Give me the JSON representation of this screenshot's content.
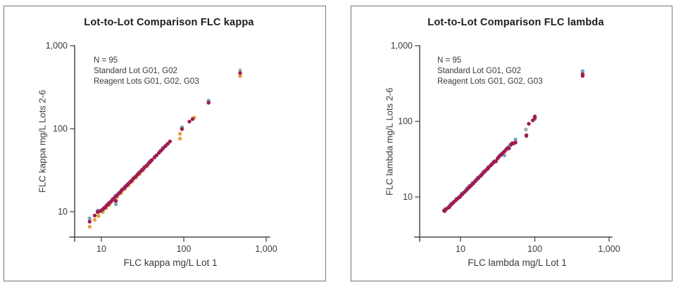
{
  "page": {
    "background": "#ffffff",
    "panel_border_color": "#72797c",
    "axis_color": "#4a4a4a",
    "text_color": "#3a3a3a",
    "title_color": "#1c1c1c"
  },
  "panels": [
    {
      "title": "Lot-to-Lot Comparison FLC kappa",
      "annotation": [
        "N = 95",
        "Standard Lot G01, G02",
        "Reagent Lots G01, G02, G03"
      ],
      "xlabel": "FLC kappa mg/L Lot 1",
      "ylabel": "FLC kappa mg/L Lots 2-6"
    },
    {
      "title": "Lot-to-Lot Comparison FLC lambda",
      "annotation": [
        "N = 95",
        "Standard Lot G01, G02",
        "Reagent Lots G01, G02, G03"
      ],
      "xlabel": "FLC lambda mg/L Lot 1",
      "ylabel": "FLC lambda mg/L Lots 2-6"
    }
  ],
  "chart_data": [
    {
      "type": "scatter",
      "title": "Lot-to-Lot Comparison FLC kappa",
      "xlabel": "FLC kappa mg/L Lot 1",
      "ylabel": "FLC kappa mg/L Lots 2-6",
      "xscale": "log",
      "yscale": "log",
      "xlim": [
        4.7,
        1050
      ],
      "ylim": [
        4.7,
        1050
      ],
      "x_tick_values": [
        10,
        100,
        1000
      ],
      "x_tick_labels": [
        "10",
        "100",
        "1,000"
      ],
      "y_tick_values": [
        10,
        100,
        1000
      ],
      "y_tick_labels": [
        "10",
        "100",
        "1,000"
      ],
      "annotation": [
        "N = 95",
        "Standard Lot G01, G02",
        "Reagent Lots G01, G02, G03"
      ],
      "grid": false,
      "legend": false,
      "series": [
        {
          "name": "gray-markers",
          "color": "#9FABB3",
          "points": [
            [
              11.8,
              12.3
            ],
            [
              16.2,
              16.8
            ],
            [
              22.4,
              23.2
            ],
            [
              31,
              32.2
            ],
            [
              45,
              46.8
            ],
            [
              483,
              505
            ]
          ]
        },
        {
          "name": "purple-markers",
          "color": "#8A3F8F",
          "points": [
            [
              10.8,
              11.1
            ],
            [
              13.8,
              14.2
            ],
            [
              19.8,
              20.3
            ],
            [
              27.8,
              28.5
            ],
            [
              40,
              41.2
            ],
            [
              56,
              58.5
            ],
            [
              200,
              208
            ]
          ]
        },
        {
          "name": "steel-blue-markers",
          "color": "#78A2C0",
          "points": [
            [
              7.2,
              8.3
            ],
            [
              9.0,
              10.3
            ],
            [
              10.4,
              10.0
            ],
            [
              12.4,
              12.1
            ],
            [
              14.8,
              15.6
            ],
            [
              15,
              12.3
            ],
            [
              17.8,
              18.6
            ],
            [
              20.8,
              21.5
            ],
            [
              24.3,
              25.3
            ],
            [
              28.9,
              29.9
            ],
            [
              33.5,
              34.9
            ],
            [
              38,
              39.6
            ],
            [
              44.5,
              46.4
            ],
            [
              52,
              54.2
            ],
            [
              60.5,
              63
            ],
            [
              95,
              104
            ],
            [
              200,
              218
            ]
          ]
        },
        {
          "name": "orange-markers",
          "color": "#E6A33C",
          "points": [
            [
              7.2,
              6.6
            ],
            [
              8.3,
              8.0
            ],
            [
              9.2,
              8.9
            ],
            [
              10.3,
              9.9
            ],
            [
              11.4,
              11.0
            ],
            [
              12.6,
              12.2
            ],
            [
              14,
              13.6
            ],
            [
              15.6,
              15.1
            ],
            [
              17.3,
              16.8
            ],
            [
              19.2,
              18.7
            ],
            [
              21.3,
              20.8
            ],
            [
              23.6,
              23.1
            ],
            [
              26.2,
              25.7
            ],
            [
              29,
              28.5
            ],
            [
              32,
              31.5
            ],
            [
              36,
              35.4
            ],
            [
              90,
              76
            ],
            [
              90,
              87
            ],
            [
              134,
              136
            ],
            [
              483,
              430
            ]
          ]
        },
        {
          "name": "crimson-markers",
          "color": "#A11C52",
          "points": [
            [
              7.2,
              7.6
            ],
            [
              8.3,
              9.0
            ],
            [
              9.0,
              9.9
            ],
            [
              9.4,
              10.1
            ],
            [
              10,
              10.4
            ],
            [
              10.5,
              10.8
            ],
            [
              11,
              11.2
            ],
            [
              11.5,
              11.8
            ],
            [
              12,
              12.2
            ],
            [
              12.5,
              12.8
            ],
            [
              13,
              13.2
            ],
            [
              13.6,
              13.9
            ],
            [
              14.2,
              14.5
            ],
            [
              15,
              13.5
            ],
            [
              15,
              15.3
            ],
            [
              15.8,
              16.1
            ],
            [
              16.6,
              16.9
            ],
            [
              17.4,
              17.8
            ],
            [
              18.3,
              18.7
            ],
            [
              19.2,
              19.6
            ],
            [
              20.2,
              20.6
            ],
            [
              21.2,
              21.6
            ],
            [
              22.3,
              22.7
            ],
            [
              23.4,
              23.8
            ],
            [
              24.6,
              25.1
            ],
            [
              25.8,
              26.3
            ],
            [
              27.1,
              27.6
            ],
            [
              28.5,
              29.1
            ],
            [
              30,
              30.6
            ],
            [
              31.5,
              32.1
            ],
            [
              33,
              33.7
            ],
            [
              35,
              35.7
            ],
            [
              37,
              37.7
            ],
            [
              39,
              39.8
            ],
            [
              41,
              41.9
            ],
            [
              44,
              45
            ],
            [
              47,
              48
            ],
            [
              50,
              51.4
            ],
            [
              53,
              54.4
            ],
            [
              56,
              57.8
            ],
            [
              60,
              61.8
            ],
            [
              64,
              66
            ],
            [
              68,
              70.2
            ],
            [
              95,
              99
            ],
            [
              117,
              122
            ],
            [
              128,
              131
            ],
            [
              200,
              206
            ],
            [
              483,
              468
            ]
          ]
        }
      ]
    },
    {
      "type": "scatter",
      "title": "Lot-to-Lot Comparison FLC lambda",
      "xlabel": "FLC lambda mg/L Lot 1",
      "ylabel": "FLC lambda mg/L Lots 2-6",
      "xscale": "log",
      "yscale": "log",
      "xlim": [
        2.9,
        1050
      ],
      "ylim": [
        2.9,
        1050
      ],
      "x_tick_values": [
        10,
        100,
        1000
      ],
      "x_tick_labels": [
        "10",
        "100",
        "1,000"
      ],
      "y_tick_values": [
        10,
        100,
        1000
      ],
      "y_tick_labels": [
        "10",
        "100",
        "1,000"
      ],
      "annotation": [
        "N = 95",
        "Standard Lot G01, G02",
        "Reagent Lots G01, G02, G03"
      ],
      "grid": false,
      "legend": false,
      "series": [
        {
          "name": "gray-markers",
          "color": "#9FABB3",
          "points": [
            [
              8,
              8.6
            ],
            [
              13,
              13.9
            ],
            [
              21,
              22.2
            ],
            [
              34,
              35.8
            ],
            [
              76,
              78
            ],
            [
              440,
              455
            ]
          ]
        },
        {
          "name": "purple-markers",
          "color": "#8A3F8F",
          "points": [
            [
              16,
              16.4
            ],
            [
              26,
              26.8
            ],
            [
              47,
              48.5
            ],
            [
              77,
              64
            ]
          ]
        },
        {
          "name": "steel-blue-markers",
          "color": "#78A2C0",
          "points": [
            [
              6.2,
              6.9
            ],
            [
              7.4,
              8.1
            ],
            [
              8.8,
              9.5
            ],
            [
              10.4,
              11.1
            ],
            [
              12.2,
              13.0
            ],
            [
              14.4,
              15.3
            ],
            [
              17,
              18
            ],
            [
              20,
              21.2
            ],
            [
              23.6,
              24.9
            ],
            [
              27.8,
              29.2
            ],
            [
              33,
              34.6
            ],
            [
              39,
              35.5
            ],
            [
              45,
              46.6
            ],
            [
              55,
              57.5
            ],
            [
              100,
              108
            ],
            [
              440,
              462
            ]
          ]
        },
        {
          "name": "crimson-markers",
          "color": "#A11C52",
          "points": [
            [
              6.0,
              6.6
            ],
            [
              6.1,
              6.5
            ],
            [
              6.4,
              6.9
            ],
            [
              6.8,
              7.2
            ],
            [
              7.0,
              7.3
            ],
            [
              7.2,
              7.6
            ],
            [
              7.6,
              8.0
            ],
            [
              8.0,
              8.4
            ],
            [
              8.5,
              8.9
            ],
            [
              9.0,
              9.4
            ],
            [
              9.5,
              9.8
            ],
            [
              9.8,
              10.0
            ],
            [
              10,
              10.3
            ],
            [
              10.6,
              10.9
            ],
            [
              11.2,
              11.5
            ],
            [
              11.8,
              12.1
            ],
            [
              12.5,
              12.8
            ],
            [
              13.2,
              13.5
            ],
            [
              13.6,
              14.0
            ],
            [
              14,
              14.3
            ],
            [
              14.8,
              15.1
            ],
            [
              15.6,
              16.0
            ],
            [
              16.5,
              16.9
            ],
            [
              17.4,
              17.8
            ],
            [
              18.4,
              18.8
            ],
            [
              19,
              19.4
            ],
            [
              19.4,
              19.9
            ],
            [
              20.5,
              21.0
            ],
            [
              21.6,
              22.1
            ],
            [
              22.8,
              23.3
            ],
            [
              23.4,
              23.9
            ],
            [
              24,
              24.6
            ],
            [
              25.4,
              26.0
            ],
            [
              26.8,
              27.4
            ],
            [
              28.3,
              29.0
            ],
            [
              29,
              29.7
            ],
            [
              30,
              29.6
            ],
            [
              31.5,
              32.3
            ],
            [
              33,
              34
            ],
            [
              35,
              36
            ],
            [
              36,
              37
            ],
            [
              37,
              38.1
            ],
            [
              39,
              40.1
            ],
            [
              41,
              42.2
            ],
            [
              43,
              44.4
            ],
            [
              45,
              44
            ],
            [
              48,
              49.6
            ],
            [
              50,
              51.6
            ],
            [
              52,
              51
            ],
            [
              55,
              52.5
            ],
            [
              77,
              65.5
            ],
            [
              83,
              93
            ],
            [
              94,
              103
            ],
            [
              100,
              111
            ],
            [
              100,
              116
            ],
            [
              440,
              400
            ],
            [
              440,
              420
            ]
          ]
        }
      ]
    }
  ]
}
